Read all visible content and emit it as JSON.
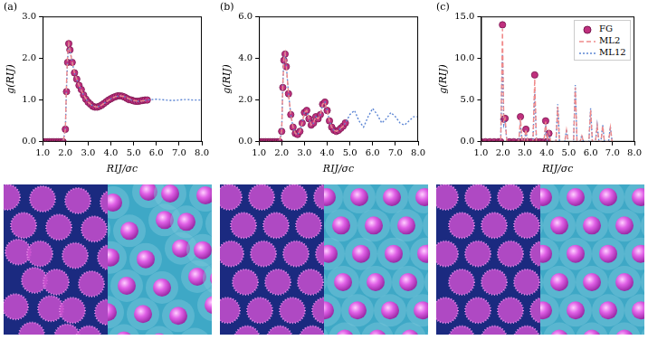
{
  "chart_data": [
    {
      "type": "line",
      "title": "(a)",
      "x_label": "RIJ/σc",
      "y_label": "g(RIJ)",
      "xlim": [
        1,
        8
      ],
      "xticks": [
        {
          "value": 1,
          "label": "1.0"
        },
        {
          "value": 2,
          "label": "2.0"
        },
        {
          "value": 3,
          "label": "3.0"
        },
        {
          "value": 4,
          "label": "4.0"
        },
        {
          "value": 5,
          "label": "5.0"
        },
        {
          "value": 6,
          "label": "6.0"
        },
        {
          "value": 7,
          "label": "7.0"
        },
        {
          "value": 8,
          "label": "8.0"
        }
      ],
      "ylim": [
        0,
        3
      ],
      "yticks": [
        {
          "value": 0,
          "label": "0.0"
        },
        {
          "value": 1,
          "label": "1.0"
        },
        {
          "value": 2,
          "label": "2.0"
        },
        {
          "value": 3,
          "label": "3.0"
        }
      ],
      "grid": false,
      "series": [
        {
          "name": "FG",
          "color": "#c0307e",
          "marker": "circle",
          "x": [
            1.0,
            1.1,
            1.2,
            1.3,
            1.4,
            1.5,
            1.6,
            1.7,
            1.8,
            1.9,
            2.0,
            2.05,
            2.1,
            2.15,
            2.2,
            2.3,
            2.4,
            2.5,
            2.6,
            2.7,
            2.8,
            2.9,
            3.0,
            3.1,
            3.2,
            3.3,
            3.4,
            3.5,
            3.6,
            3.7,
            3.8,
            3.9,
            4.0,
            4.1,
            4.2,
            4.3,
            4.4,
            4.5,
            4.6,
            4.7,
            4.8,
            4.9,
            5.0,
            5.1,
            5.2,
            5.3,
            5.4,
            5.5,
            5.6
          ],
          "values": [
            0,
            0,
            0,
            0,
            0,
            0,
            0,
            0,
            0,
            0,
            0.3,
            1.2,
            1.9,
            2.35,
            2.2,
            1.9,
            1.65,
            1.5,
            1.35,
            1.25,
            1.12,
            1.02,
            0.95,
            0.9,
            0.85,
            0.83,
            0.83,
            0.85,
            0.88,
            0.92,
            0.96,
            1.0,
            1.03,
            1.06,
            1.08,
            1.1,
            1.1,
            1.09,
            1.07,
            1.04,
            1.01,
            1.0,
            0.98,
            0.97,
            0.97,
            0.98,
            0.99,
            1.0,
            1.0
          ]
        },
        {
          "name": "ML2",
          "color": "#f08a8a",
          "line_style": "dashed",
          "x": [
            1.0,
            1.5,
            1.9,
            2.0,
            2.05,
            2.1,
            2.15,
            2.2,
            2.3,
            2.4,
            2.6,
            2.8,
            3.0,
            3.2,
            3.4,
            3.6,
            3.8,
            4.0,
            4.2,
            4.4,
            4.6,
            4.8,
            5.0,
            5.2,
            5.4,
            5.6
          ],
          "values": [
            0,
            0,
            0,
            0.3,
            1.4,
            2.1,
            2.35,
            2.2,
            1.9,
            1.65,
            1.35,
            1.12,
            0.95,
            0.86,
            0.83,
            0.88,
            0.96,
            1.03,
            1.08,
            1.1,
            1.08,
            1.03,
            0.99,
            0.97,
            0.98,
            1.0
          ]
        },
        {
          "name": "ML12",
          "color": "#5d86d4",
          "line_style": "dotted",
          "x": [
            1.0,
            1.5,
            1.9,
            2.0,
            2.05,
            2.1,
            2.15,
            2.2,
            2.3,
            2.4,
            2.6,
            2.8,
            3.0,
            3.2,
            3.4,
            3.6,
            3.8,
            4.0,
            4.2,
            4.4,
            4.6,
            4.8,
            5.0,
            5.2,
            5.4,
            5.6,
            5.8,
            6.0,
            6.2,
            6.4,
            6.6,
            6.8,
            7.0,
            7.2,
            7.4,
            7.6,
            7.8,
            8.0
          ],
          "values": [
            0,
            0,
            0,
            0.3,
            1.3,
            2.0,
            2.3,
            2.2,
            1.9,
            1.65,
            1.35,
            1.12,
            0.95,
            0.86,
            0.83,
            0.88,
            0.96,
            1.03,
            1.08,
            1.1,
            1.08,
            1.02,
            0.98,
            0.97,
            0.98,
            1.0,
            1.01,
            1.02,
            1.01,
            1.0,
            0.99,
            0.99,
            1.0,
            1.01,
            1.01,
            1.0,
            1.0,
            1.0
          ]
        }
      ]
    },
    {
      "type": "line",
      "title": "(b)",
      "x_label": "RIJ/σc",
      "y_label": "g(RIJ)",
      "xlim": [
        1,
        8
      ],
      "xticks": [
        {
          "value": 1,
          "label": "1.0"
        },
        {
          "value": 2,
          "label": "2.0"
        },
        {
          "value": 3,
          "label": "3.0"
        },
        {
          "value": 4,
          "label": "4.0"
        },
        {
          "value": 5,
          "label": "5.0"
        },
        {
          "value": 6,
          "label": "6.0"
        },
        {
          "value": 7,
          "label": "7.0"
        },
        {
          "value": 8,
          "label": "8.0"
        }
      ],
      "ylim": [
        0,
        6
      ],
      "yticks": [
        {
          "value": 0,
          "label": "0.0"
        },
        {
          "value": 2,
          "label": "2.0"
        },
        {
          "value": 4,
          "label": "4.0"
        },
        {
          "value": 6,
          "label": "6.0"
        }
      ],
      "grid": false,
      "series": [
        {
          "name": "FG",
          "color": "#c0307e",
          "marker": "circle",
          "x": [
            1.0,
            1.1,
            1.2,
            1.3,
            1.4,
            1.5,
            1.6,
            1.7,
            1.8,
            1.9,
            2.0,
            2.05,
            2.1,
            2.15,
            2.2,
            2.3,
            2.4,
            2.5,
            2.6,
            2.7,
            2.8,
            2.9,
            3.0,
            3.1,
            3.2,
            3.3,
            3.4,
            3.5,
            3.6,
            3.7,
            3.8,
            3.9,
            4.0,
            4.1,
            4.2,
            4.3,
            4.4,
            4.5,
            4.6,
            4.7,
            4.8
          ],
          "values": [
            0,
            0,
            0,
            0,
            0,
            0,
            0,
            0,
            0,
            0,
            0.5,
            2.6,
            3.9,
            4.2,
            3.6,
            2.3,
            1.3,
            0.7,
            0.4,
            0.35,
            0.5,
            0.9,
            1.4,
            1.5,
            1.1,
            0.8,
            0.9,
            1.2,
            1.1,
            1.3,
            1.8,
            1.9,
            1.5,
            1.0,
            0.7,
            0.55,
            0.5,
            0.55,
            0.65,
            0.75,
            0.9
          ]
        },
        {
          "name": "ML2",
          "color": "#f08a8a",
          "line_style": "dashed",
          "x": [
            1.0,
            1.5,
            1.9,
            2.0,
            2.05,
            2.1,
            2.15,
            2.2,
            2.3,
            2.4,
            2.5,
            2.6,
            2.7,
            2.8,
            2.9,
            3.0,
            3.1,
            3.2,
            3.3,
            3.4,
            3.5,
            3.6,
            3.7,
            3.8,
            3.9,
            4.0,
            4.1,
            4.2,
            4.3,
            4.4,
            4.5,
            4.6,
            4.7,
            4.8
          ],
          "values": [
            0,
            0,
            0,
            0.5,
            2.7,
            4.0,
            4.25,
            3.7,
            2.3,
            1.3,
            0.7,
            0.4,
            0.35,
            0.5,
            0.9,
            1.4,
            1.5,
            1.1,
            0.8,
            0.9,
            1.2,
            1.1,
            1.3,
            1.8,
            1.9,
            1.5,
            1.0,
            0.7,
            0.55,
            0.5,
            0.55,
            0.65,
            0.75,
            0.9
          ]
        },
        {
          "name": "ML12",
          "color": "#5d86d4",
          "line_style": "dotted",
          "x": [
            1.0,
            1.5,
            1.9,
            2.0,
            2.05,
            2.1,
            2.15,
            2.2,
            2.3,
            2.4,
            2.5,
            2.6,
            2.7,
            2.8,
            2.9,
            3.0,
            3.1,
            3.2,
            3.3,
            3.4,
            3.5,
            3.6,
            3.7,
            3.8,
            3.9,
            4.0,
            4.1,
            4.2,
            4.3,
            4.4,
            4.5,
            4.6,
            4.7,
            4.8,
            5.0,
            5.2,
            5.4,
            5.6,
            5.8,
            6.0,
            6.2,
            6.4,
            6.6,
            6.8,
            7.0,
            7.2,
            7.4,
            7.6,
            7.8,
            8.0
          ],
          "values": [
            0,
            0,
            0,
            0.5,
            2.8,
            4.0,
            4.2,
            3.7,
            2.3,
            1.3,
            0.7,
            0.4,
            0.35,
            0.5,
            0.9,
            1.4,
            1.5,
            1.1,
            0.8,
            0.9,
            1.2,
            1.1,
            1.3,
            1.8,
            1.9,
            1.5,
            1.0,
            0.7,
            0.55,
            0.5,
            0.55,
            0.65,
            0.75,
            0.9,
            1.3,
            1.5,
            1.0,
            0.7,
            1.2,
            1.6,
            1.3,
            0.9,
            1.1,
            1.4,
            1.2,
            0.9,
            0.8,
            1.0,
            1.2,
            1.2
          ]
        }
      ]
    },
    {
      "type": "line",
      "title": "(c)",
      "x_label": "RIJ/σc",
      "y_label": "g(RIJ)",
      "xlim": [
        1,
        8
      ],
      "xticks": [
        {
          "value": 1,
          "label": "1.0"
        },
        {
          "value": 2,
          "label": "2.0"
        },
        {
          "value": 3,
          "label": "3.0"
        },
        {
          "value": 4,
          "label": "4.0"
        },
        {
          "value": 5,
          "label": "5.0"
        },
        {
          "value": 6,
          "label": "6.0"
        },
        {
          "value": 7,
          "label": "7.0"
        },
        {
          "value": 8,
          "label": "8.0"
        }
      ],
      "ylim": [
        0,
        15
      ],
      "yticks": [
        {
          "value": 0,
          "label": "0.0"
        },
        {
          "value": 5,
          "label": "5.0"
        },
        {
          "value": 10,
          "label": "10.0"
        },
        {
          "value": 15,
          "label": "15.0"
        }
      ],
      "grid": false,
      "legend": "upper right",
      "series": [
        {
          "name": "FG",
          "color": "#c0307e",
          "marker": "circle",
          "x": [
            1.0,
            1.2,
            1.4,
            1.6,
            1.8,
            1.9,
            1.98,
            2.04,
            2.1,
            2.3,
            2.5,
            2.72,
            2.8,
            2.88,
            2.97,
            3.05,
            3.13,
            3.3,
            3.45,
            3.53,
            3.7,
            3.87,
            3.95,
            4.02,
            4.1
          ],
          "values": [
            0,
            0,
            0,
            0,
            0,
            0,
            14,
            2.7,
            2.8,
            0,
            0,
            0,
            3.0,
            0,
            0,
            1.5,
            0,
            0,
            8.0,
            0,
            0,
            0,
            2.5,
            0,
            1.0
          ]
        },
        {
          "name": "ML2",
          "color": "#f08a8a",
          "line_style": "dashed",
          "x": [
            1.0,
            1.9,
            1.98,
            2.04,
            2.1,
            2.18,
            2.72,
            2.8,
            2.88,
            2.97,
            3.05,
            3.13,
            3.37,
            3.45,
            3.53,
            3.87,
            3.95,
            4.02,
            4.1,
            4.18,
            4.42,
            4.5,
            4.58,
            4.82,
            4.9,
            4.98,
            5.22,
            5.3,
            5.38,
            5.52,
            5.6,
            5.68,
            5.92,
            6.0,
            6.08,
            6.22,
            6.3,
            6.38,
            6.47,
            6.55,
            6.63,
            6.82,
            6.9,
            6.98
          ],
          "values": [
            0,
            0,
            13.5,
            2.5,
            2.8,
            0,
            0,
            2.8,
            0,
            0,
            1.5,
            0,
            0,
            7.5,
            0,
            0,
            2.4,
            0.2,
            1.2,
            0,
            0,
            4.2,
            0,
            0,
            1.4,
            0,
            0,
            6.5,
            0,
            0,
            0.7,
            0,
            0,
            3.8,
            0,
            0,
            1.9,
            0,
            0,
            1.9,
            0,
            0,
            1.7,
            0
          ]
        },
        {
          "name": "ML12",
          "color": "#5d86d4",
          "line_style": "dotted",
          "x": [
            1.0,
            1.9,
            1.98,
            2.04,
            2.1,
            2.18,
            2.72,
            2.8,
            2.88,
            2.97,
            3.05,
            3.13,
            3.37,
            3.45,
            3.53,
            3.87,
            3.95,
            4.02,
            4.1,
            4.18,
            4.42,
            4.5,
            4.58,
            4.82,
            4.9,
            4.98,
            5.22,
            5.3,
            5.38,
            5.52,
            5.6,
            5.68,
            5.92,
            6.0,
            6.08,
            6.22,
            6.3,
            6.38,
            6.47,
            6.55,
            6.63,
            6.82,
            6.9,
            6.98
          ],
          "values": [
            0,
            0,
            10.5,
            2.0,
            2.5,
            0,
            0,
            2.0,
            0,
            0,
            1.2,
            0,
            0,
            6.0,
            0,
            0,
            2.0,
            0.2,
            1.0,
            0,
            0,
            4.5,
            0,
            0,
            1.5,
            0,
            0,
            6.8,
            0,
            0,
            0.8,
            0,
            0,
            4.0,
            0,
            0,
            2.0,
            0,
            0,
            2.0,
            0,
            0,
            1.8,
            0
          ]
        }
      ]
    }
  ]
}
